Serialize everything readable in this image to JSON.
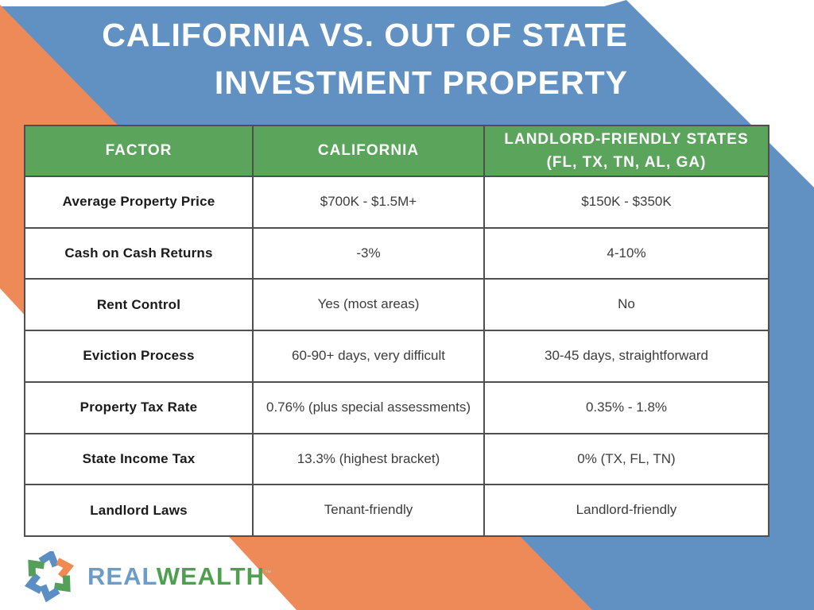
{
  "title": {
    "line1": "CALIFORNIA VS. OUT OF STATE",
    "line2": "INVESTMENT PROPERTY"
  },
  "table": {
    "col1_header": "FACTOR",
    "col2_header": "CALIFORNIA",
    "col3_header_line1": "LANDLORD-FRIENDLY STATES",
    "col3_header_line2": "(FL, TX, TN, AL, GA)"
  },
  "chart_data": {
    "type": "table",
    "title": "CALIFORNIA VS. OUT OF STATE INVESTMENT PROPERTY",
    "columns": [
      "FACTOR",
      "CALIFORNIA",
      "LANDLORD-FRIENDLY STATES (FL, TX, TN, AL, GA)"
    ],
    "rows": [
      [
        "Average Property Price",
        "$700K - $1.5M+",
        "$150K - $350K"
      ],
      [
        "Cash on Cash Returns",
        "-3%",
        "4-10%"
      ],
      [
        "Rent Control",
        "Yes (most areas)",
        "No"
      ],
      [
        "Eviction Process",
        "60-90+ days, very difficult",
        "30-45 days, straightforward"
      ],
      [
        "Property Tax Rate",
        "0.76% (plus special assessments)",
        "0.35% - 1.8%"
      ],
      [
        "State Income Tax",
        "13.3% (highest bracket)",
        "0% (TX, FL, TN)"
      ],
      [
        "Landlord Laws",
        "Tenant-friendly",
        "Landlord-friendly"
      ]
    ]
  },
  "logo": {
    "brand_part1": "REAL",
    "brand_part2": "WEALTH",
    "trademark": "™",
    "chevron_colors": [
      "#5b8fc4",
      "#ef8a53",
      "#55a058",
      "#5b8fc4",
      "#5b8fc4",
      "#55a058"
    ]
  },
  "colors": {
    "banner_blue": "#6191c2",
    "ribbon_orange": "#ed8a58",
    "header_green": "#5aa45c",
    "grid_line": "#4f4f4f",
    "factor_text": "#1a1a1a",
    "value_text": "#3c3c3c",
    "brand_blue": "#6b9dc8",
    "brand_green": "#4ea04f",
    "title_text": "#ffffff"
  }
}
